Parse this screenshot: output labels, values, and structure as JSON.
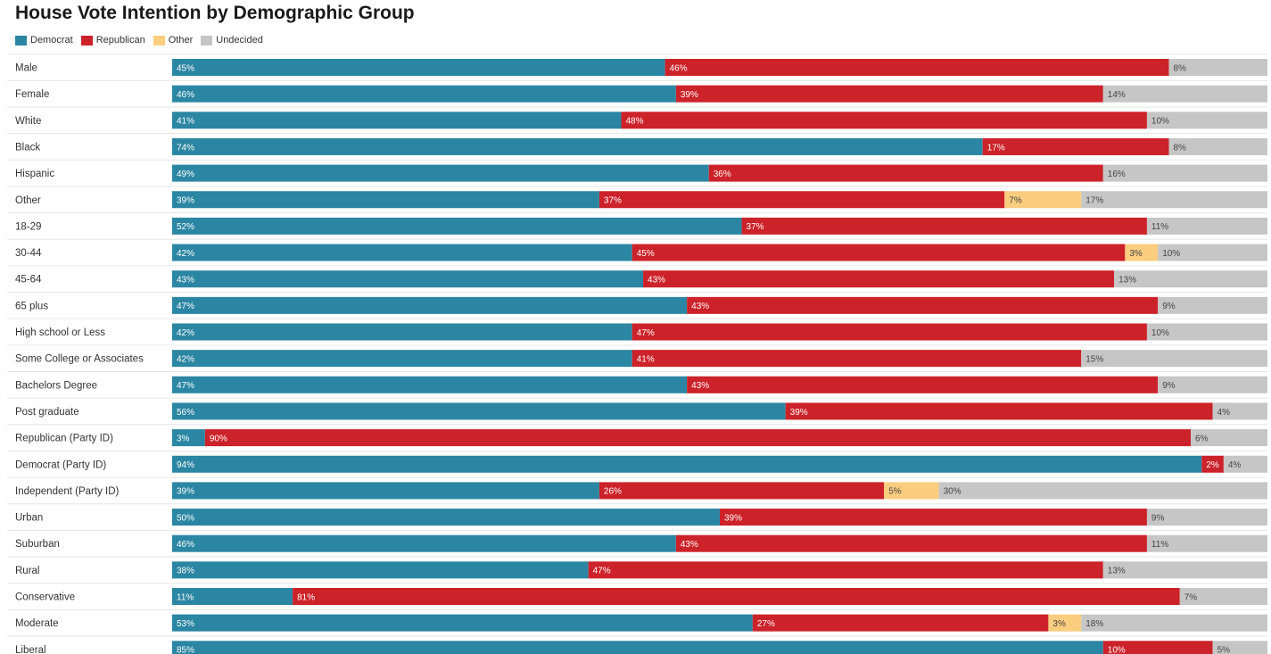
{
  "chart_data": {
    "type": "bar",
    "orientation": "horizontal",
    "stacked": true,
    "title": "House Vote Intention by Demographic Group",
    "legend_position": "top-left",
    "xlim": [
      0,
      100
    ],
    "categories": [
      "Male",
      "Female",
      "White",
      "Black",
      "Hispanic",
      "Other",
      "18-29",
      "30-44",
      "45-64",
      "65 plus",
      "High school or Less",
      "Some College or Associates",
      "Bachelors Degree",
      "Post graduate",
      "Republican (Party ID)",
      "Democrat (Party ID)",
      "Independent (Party ID)",
      "Urban",
      "Suburban",
      "Rural",
      "Conservative",
      "Moderate",
      "Liberal"
    ],
    "series": [
      {
        "name": "Democrat",
        "color": "#2b86a3",
        "values": [
          45,
          46,
          41,
          74,
          49,
          39,
          52,
          42,
          43,
          47,
          42,
          42,
          47,
          56,
          3,
          94,
          39,
          50,
          46,
          38,
          11,
          53,
          85
        ]
      },
      {
        "name": "Republican",
        "color": "#cc2229",
        "values": [
          46,
          39,
          48,
          17,
          36,
          37,
          37,
          45,
          43,
          43,
          47,
          41,
          43,
          39,
          90,
          2,
          26,
          39,
          43,
          47,
          81,
          27,
          10
        ]
      },
      {
        "name": "Other",
        "color": "#fbcd7f",
        "values": [
          null,
          null,
          null,
          null,
          null,
          7,
          null,
          3,
          null,
          null,
          null,
          null,
          null,
          null,
          null,
          null,
          5,
          null,
          null,
          null,
          null,
          3,
          null
        ]
      },
      {
        "name": "Undecided",
        "color": "#c6c6c6",
        "values": [
          8,
          14,
          10,
          8,
          16,
          17,
          11,
          10,
          13,
          9,
          10,
          15,
          9,
          4,
          6,
          4,
          30,
          9,
          11,
          13,
          7,
          18,
          5
        ]
      }
    ]
  }
}
